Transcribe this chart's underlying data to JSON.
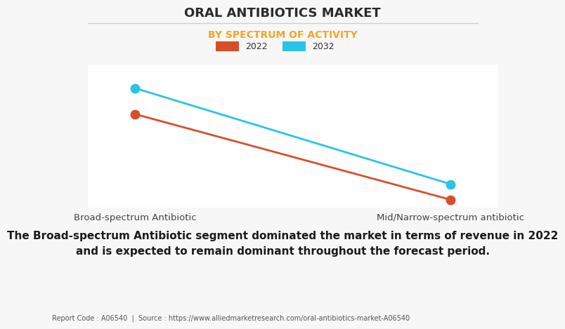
{
  "title": "ORAL ANTIBIOTICS MARKET",
  "subtitle": "BY SPECTRUM OF ACTIVITY",
  "subtitle_color": "#F5A623",
  "categories": [
    "Broad-spectrum Antibiotic",
    "Mid/Narrow-spectrum antibiotic"
  ],
  "series": [
    {
      "label": "2022",
      "color": "#D94E2A",
      "values": [
        0.72,
        0.06
      ]
    },
    {
      "label": "2032",
      "color": "#29C4E8",
      "values": [
        0.92,
        0.18
      ]
    }
  ],
  "ylim": [
    0,
    1.1
  ],
  "background_color": "#f7f7f7",
  "plot_background_color": "#ffffff",
  "grid_color": "#d0d0d0",
  "title_fontsize": 13,
  "subtitle_fontsize": 10,
  "legend_fontsize": 9,
  "annotation_text": "The Broad-spectrum Antibiotic segment dominated the market in terms of revenue in 2022\nand is expected to remain dominant throughout the forecast period.",
  "annotation_fontsize": 11,
  "footer_text": "Report Code : A06540  |  Source : https://www.alliedmarketresearch.com/oral-antibiotics-market-A06540",
  "footer_fontsize": 7
}
